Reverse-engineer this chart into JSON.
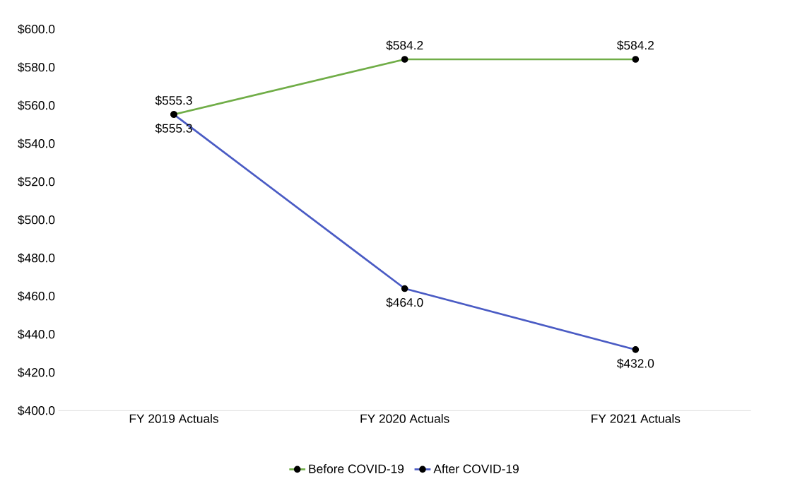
{
  "chart_data": {
    "type": "line",
    "categories": [
      "FY 2019 Actuals",
      "FY 2020 Actuals",
      "FY 2021 Actuals"
    ],
    "series": [
      {
        "name": "Before COVID-19",
        "color": "#70ad47",
        "values": [
          555.3,
          584.2,
          584.2
        ],
        "value_labels": [
          "$555.3",
          "$584.2",
          "$584.2"
        ]
      },
      {
        "name": "After COVID-19",
        "color": "#4a5bc4",
        "values": [
          555.3,
          464.0,
          432.0
        ],
        "value_labels": [
          "$555.3",
          "$464.0",
          "$432.0"
        ]
      }
    ],
    "ylim": [
      400,
      600
    ],
    "yticks": [
      {
        "value": 400,
        "label": "$400.0"
      },
      {
        "value": 420,
        "label": "$420.0"
      },
      {
        "value": 440,
        "label": "$440.0"
      },
      {
        "value": 460,
        "label": "$460.0"
      },
      {
        "value": 480,
        "label": "$480.0"
      },
      {
        "value": 500,
        "label": "$500.0"
      },
      {
        "value": 520,
        "label": "$520.0"
      },
      {
        "value": 540,
        "label": "$540.0"
      },
      {
        "value": 560,
        "label": "$560.0"
      },
      {
        "value": 580,
        "label": "$580.0"
      },
      {
        "value": 600,
        "label": "$600.0"
      }
    ],
    "grid": false,
    "legend": "bottom",
    "marker": "circle",
    "line_style": "solid"
  }
}
